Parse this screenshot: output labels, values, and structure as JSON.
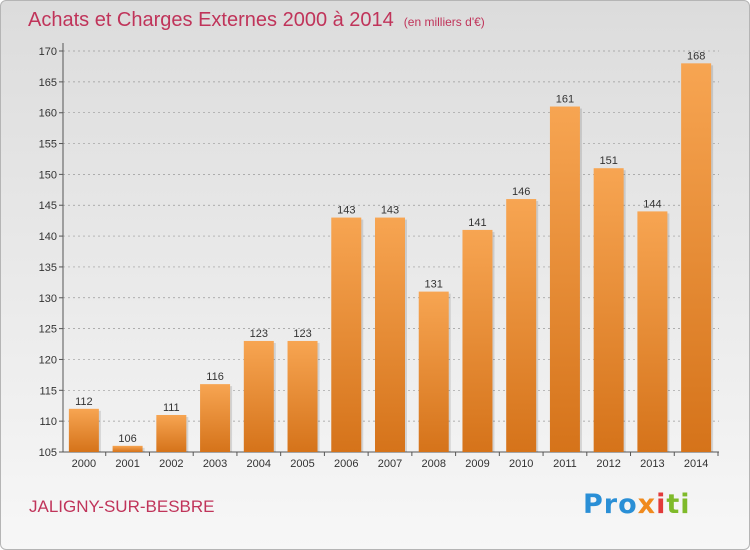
{
  "chart_data": {
    "type": "bar",
    "title": "Achats et Charges Externes 2000 à 2014",
    "subtitle": "(en milliers d'€)",
    "categories": [
      "2000",
      "2001",
      "2002",
      "2003",
      "2004",
      "2005",
      "2006",
      "2007",
      "2008",
      "2009",
      "2010",
      "2011",
      "2012",
      "2013",
      "2014"
    ],
    "values": [
      112,
      106,
      111,
      116,
      123,
      123,
      143,
      143,
      131,
      141,
      146,
      161,
      151,
      144,
      168
    ],
    "ylim": [
      105,
      170
    ],
    "yticks": [
      105,
      110,
      115,
      120,
      125,
      130,
      135,
      140,
      145,
      150,
      155,
      160,
      165,
      170
    ],
    "grid": "horizontal-dashed",
    "xlabel": "",
    "ylabel": "",
    "bar_color_light": "#f7a552",
    "bar_color_dark": "#d5731a"
  },
  "footer": {
    "city": "JALIGNY-SUR-BESBRE",
    "logo_parts": [
      "Pro",
      "x",
      "i",
      "ti"
    ]
  }
}
